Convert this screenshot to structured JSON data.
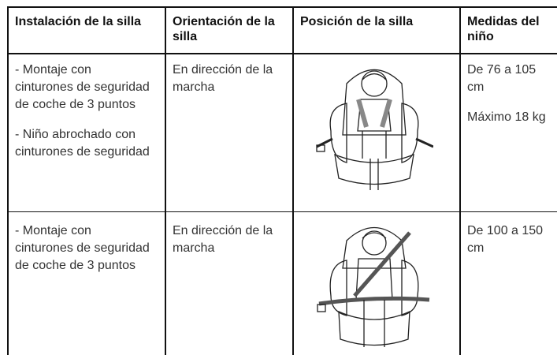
{
  "table": {
    "header": [
      "Instalación de la silla",
      "Orientación de la silla",
      "Posición de la silla",
      "Medidas del niño"
    ],
    "rows": [
      {
        "installation": [
          "- Montaje con cinturones de seguridad de coche de 3 puntos",
          "- Niño abrochado con cinturones de seguridad"
        ],
        "orientation": "En dirección de la marcha",
        "measures": [
          "De 76 a 105 cm",
          "Máximo 18 kg"
        ]
      },
      {
        "installation": [
          "- Montaje con cinturones de seguridad de coche de 3 puntos"
        ],
        "orientation": "En dirección de la marcha",
        "measures": [
          "De 100 a 150 cm"
        ]
      }
    ]
  }
}
